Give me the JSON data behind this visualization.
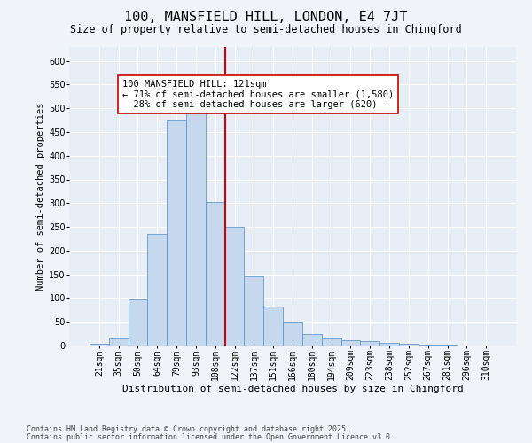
{
  "title1": "100, MANSFIELD HILL, LONDON, E4 7JT",
  "title2": "Size of property relative to semi-detached houses in Chingford",
  "xlabel": "Distribution of semi-detached houses by size in Chingford",
  "ylabel": "Number of semi-detached properties",
  "categories": [
    "21sqm",
    "35sqm",
    "50sqm",
    "64sqm",
    "79sqm",
    "93sqm",
    "108sqm",
    "122sqm",
    "137sqm",
    "151sqm",
    "166sqm",
    "180sqm",
    "194sqm",
    "209sqm",
    "223sqm",
    "238sqm",
    "252sqm",
    "267sqm",
    "281sqm",
    "296sqm",
    "310sqm"
  ],
  "values": [
    3,
    15,
    97,
    235,
    475,
    500,
    302,
    250,
    145,
    82,
    50,
    25,
    15,
    12,
    9,
    5,
    3,
    2,
    1,
    0,
    0
  ],
  "bar_color": "#c5d8ed",
  "bar_edge_color": "#6699cc",
  "vline_color": "#cc0000",
  "vline_x_index": 7,
  "annotation_text": "100 MANSFIELD HILL: 121sqm\n← 71% of semi-detached houses are smaller (1,580)\n  28% of semi-detached houses are larger (620) →",
  "annotation_box_color": "#ffffff",
  "annotation_box_edge": "#cc0000",
  "ylim": [
    0,
    630
  ],
  "yticks": [
    0,
    50,
    100,
    150,
    200,
    250,
    300,
    350,
    400,
    450,
    500,
    550,
    600
  ],
  "plot_bg_color": "#e8eef5",
  "fig_bg_color": "#f0f4f8",
  "grid_color": "#ffffff",
  "footer1": "Contains HM Land Registry data © Crown copyright and database right 2025.",
  "footer2": "Contains public sector information licensed under the Open Government Licence v3.0.",
  "title1_fontsize": 11,
  "title2_fontsize": 8.5,
  "xlabel_fontsize": 8,
  "ylabel_fontsize": 7.5,
  "tick_fontsize": 7,
  "annotation_fontsize": 7.5,
  "footer_fontsize": 6
}
